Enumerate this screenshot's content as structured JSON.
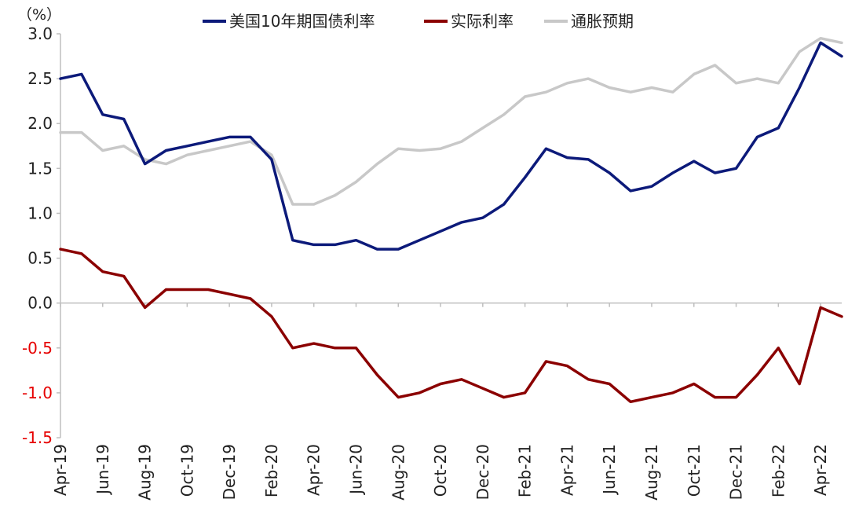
{
  "chart_data": {
    "type": "line",
    "unit_label": "（%）",
    "ylim": [
      -1.5,
      3.0
    ],
    "yticks": [
      "3.0",
      "2.5",
      "2.0",
      "1.5",
      "1.0",
      "0.5",
      "0.0",
      "-0.5",
      "-1.0",
      "-1.5"
    ],
    "ytick_values": [
      3.0,
      2.5,
      2.0,
      1.5,
      1.0,
      0.5,
      0.0,
      -0.5,
      -1.0,
      -1.5
    ],
    "negative_tick_color": "#e60000",
    "x_labels": [
      "Apr-19",
      "Jun-19",
      "Aug-19",
      "Oct-19",
      "Dec-19",
      "Feb-20",
      "Apr-20",
      "Jun-20",
      "Aug-20",
      "Oct-20",
      "Dec-20",
      "Feb-21",
      "Apr-21",
      "Jun-21",
      "Aug-21",
      "Oct-21",
      "Dec-21",
      "Feb-22",
      "Apr-22"
    ],
    "x_dates": [
      "2019-04",
      "2019-05",
      "2019-06",
      "2019-07",
      "2019-08",
      "2019-09",
      "2019-10",
      "2019-11",
      "2019-12",
      "2020-01",
      "2020-02",
      "2020-03",
      "2020-04",
      "2020-05",
      "2020-06",
      "2020-07",
      "2020-08",
      "2020-09",
      "2020-10",
      "2020-11",
      "2020-12",
      "2021-01",
      "2021-02",
      "2021-03",
      "2021-04",
      "2021-05",
      "2021-06",
      "2021-07",
      "2021-08",
      "2021-09",
      "2021-10",
      "2021-11",
      "2021-12",
      "2022-01",
      "2022-02",
      "2022-03",
      "2022-04",
      "2022-05"
    ],
    "grid": false,
    "legend_position": "top",
    "series": [
      {
        "name": "美国10年期国债利率",
        "color": "#0c1a7a",
        "values": [
          2.5,
          2.55,
          2.1,
          2.05,
          1.55,
          1.7,
          1.75,
          1.8,
          1.85,
          1.85,
          1.6,
          0.7,
          0.65,
          0.65,
          0.7,
          0.6,
          0.6,
          0.7,
          0.8,
          0.9,
          0.95,
          1.1,
          1.4,
          1.72,
          1.62,
          1.6,
          1.45,
          1.25,
          1.3,
          1.45,
          1.58,
          1.45,
          1.5,
          1.85,
          1.95,
          2.4,
          2.9,
          2.75
        ]
      },
      {
        "name": "实际利率",
        "color": "#8b0000",
        "values": [
          0.6,
          0.55,
          0.35,
          0.3,
          -0.05,
          0.15,
          0.15,
          0.15,
          0.1,
          0.05,
          -0.15,
          -0.5,
          -0.45,
          -0.5,
          -0.5,
          -0.8,
          -1.05,
          -1.0,
          -0.9,
          -0.85,
          -0.95,
          -1.05,
          -1.0,
          -0.65,
          -0.7,
          -0.85,
          -0.9,
          -1.1,
          -1.05,
          -1.0,
          -0.9,
          -1.05,
          -1.05,
          -0.8,
          -0.5,
          -0.9,
          -0.05,
          -0.15
        ]
      },
      {
        "name": "通胀预期",
        "color": "#c8c8c8",
        "values": [
          1.9,
          1.9,
          1.7,
          1.75,
          1.6,
          1.55,
          1.65,
          1.7,
          1.75,
          1.8,
          1.65,
          1.1,
          1.1,
          1.2,
          1.35,
          1.55,
          1.72,
          1.7,
          1.72,
          1.8,
          1.95,
          2.1,
          2.3,
          2.35,
          2.45,
          2.5,
          2.4,
          2.35,
          2.4,
          2.35,
          2.55,
          2.65,
          2.45,
          2.5,
          2.45,
          2.8,
          2.95,
          2.9
        ]
      }
    ]
  }
}
